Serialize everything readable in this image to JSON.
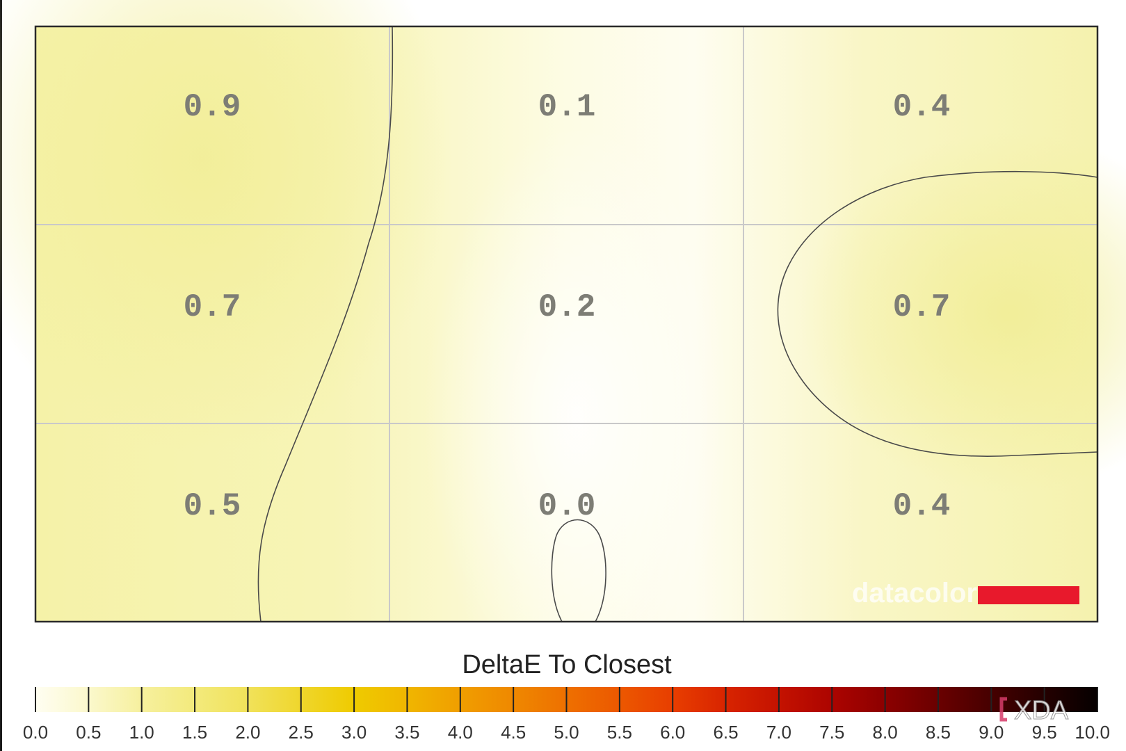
{
  "chart_data": {
    "type": "heatmap",
    "title": "",
    "rows": 3,
    "cols": 3,
    "values": [
      [
        0.9,
        0.1,
        0.4
      ],
      [
        0.7,
        0.2,
        0.7
      ],
      [
        0.5,
        0.0,
        0.4
      ]
    ],
    "labels": [
      [
        "0.9",
        "0.1",
        "0.4"
      ],
      [
        "0.7",
        "0.2",
        "0.7"
      ],
      [
        "0.5",
        "0.0",
        "0.4"
      ]
    ],
    "grid": true,
    "colorbar": {
      "title": "DeltaE To Closest",
      "range": [
        0,
        10
      ],
      "ticks": [
        "0.0",
        "0.5",
        "1.0",
        "1.5",
        "2.0",
        "2.5",
        "3.0",
        "3.5",
        "4.0",
        "4.5",
        "5.0",
        "5.5",
        "6.0",
        "6.5",
        "7.0",
        "7.5",
        "8.0",
        "8.5",
        "9.0",
        "9.5",
        "10.0"
      ],
      "colors": [
        "#fffef0",
        "#fbf8c8",
        "#f6f09a",
        "#f2ea80",
        "#f1e460",
        "#efd830",
        "#efd000",
        "#f0b800",
        "#f0a000",
        "#f08a00",
        "#ee7000",
        "#ec5a00",
        "#ea4000",
        "#d82000",
        "#c41000",
        "#b00000",
        "#900000",
        "#700000",
        "#500000",
        "#300000"
      ]
    },
    "contours": "iso-lines of DeltaE interpolated across the grid"
  },
  "watermarks": {
    "brand": "datacolor",
    "site": "XDA",
    "brand_bar_color": "#e8192c"
  }
}
